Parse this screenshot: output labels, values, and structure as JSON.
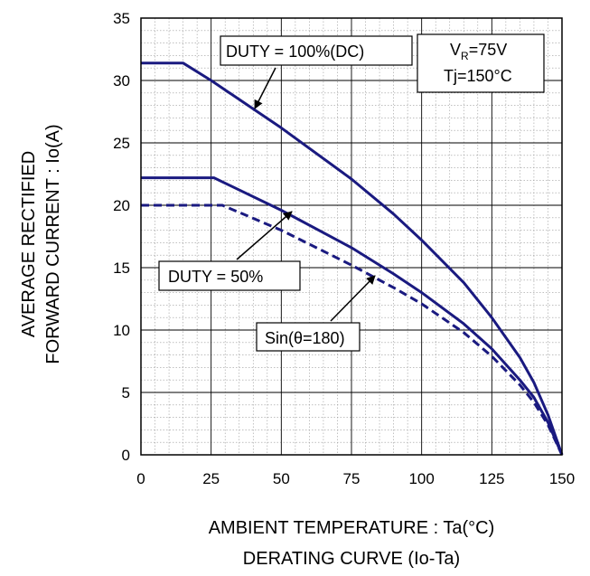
{
  "chart_data": {
    "type": "line",
    "xlabel": "AMBIENT TEMPERATURE : Ta(°C)",
    "subtitle": "DERATING CURVE (Io-Ta)",
    "ylabel_line1": "AVERAGE RECTIFIED",
    "ylabel_line2": "FORWARD CURRENT : Io(A)",
    "xlim": [
      0,
      150
    ],
    "ylim": [
      0,
      35
    ],
    "x_ticks": [
      "0",
      "25",
      "50",
      "75",
      "100",
      "125",
      "150"
    ],
    "y_ticks": [
      "0",
      "5",
      "10",
      "15",
      "20",
      "25",
      "30",
      "35"
    ],
    "grid": true,
    "series": [
      {
        "name": "DUTY = 100%(DC)",
        "style": "solid",
        "color": "#1a1a80",
        "points": [
          [
            0,
            31.4
          ],
          [
            15,
            31.4
          ],
          [
            25,
            30.0
          ],
          [
            50,
            26.2
          ],
          [
            75,
            22.1
          ],
          [
            90,
            19.3
          ],
          [
            100,
            17.2
          ],
          [
            115,
            13.8
          ],
          [
            125,
            11.0
          ],
          [
            135,
            7.8
          ],
          [
            140,
            5.8
          ],
          [
            145,
            3.2
          ],
          [
            150,
            0
          ]
        ]
      },
      {
        "name": "DUTY = 50%",
        "style": "solid",
        "color": "#1a1a80",
        "points": [
          [
            0,
            22.2
          ],
          [
            26,
            22.2
          ],
          [
            50,
            19.6
          ],
          [
            75,
            16.6
          ],
          [
            90,
            14.5
          ],
          [
            100,
            13.0
          ],
          [
            115,
            10.5
          ],
          [
            125,
            8.5
          ],
          [
            135,
            6.0
          ],
          [
            140,
            4.6
          ],
          [
            145,
            2.6
          ],
          [
            150,
            0
          ]
        ]
      },
      {
        "name": "Sin(θ=180)",
        "style": "dashed",
        "color": "#1a1a80",
        "points": [
          [
            0,
            20.0
          ],
          [
            29,
            20.0
          ],
          [
            50,
            18.0
          ],
          [
            75,
            15.2
          ],
          [
            90,
            13.4
          ],
          [
            100,
            12.1
          ],
          [
            115,
            9.8
          ],
          [
            125,
            7.9
          ],
          [
            135,
            5.6
          ],
          [
            140,
            4.2
          ],
          [
            145,
            2.4
          ],
          [
            150,
            0
          ]
        ]
      }
    ],
    "annotations": {
      "duty100": "DUTY = 100%(DC)",
      "duty50": "DUTY = 50%",
      "sin": "Sin(θ=180)",
      "vr_main": "V",
      "vr_sub": "R",
      "vr_rest": "=75V",
      "tj": "Tj=150°C"
    }
  }
}
